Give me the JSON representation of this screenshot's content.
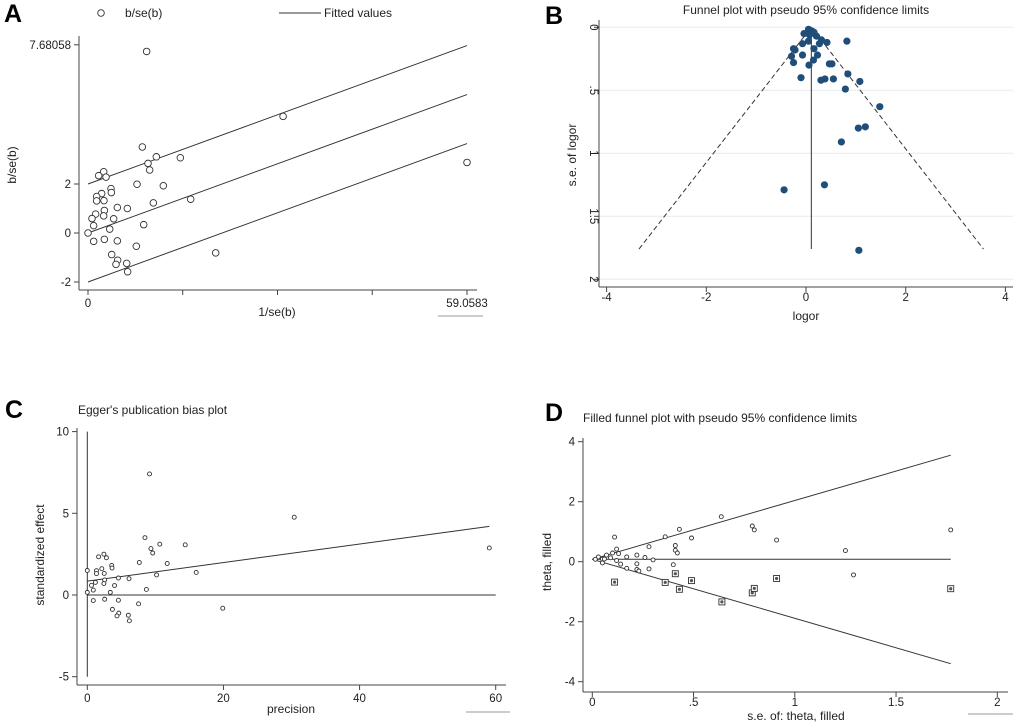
{
  "chart_data": [
    {
      "panel": "A",
      "type": "scatter",
      "title": "",
      "legend": {
        "position": "top",
        "entries": [
          {
            "label": "b/se(b)",
            "marker": "hollow-circle"
          },
          {
            "label": "Fitted values",
            "marker": "line"
          }
        ]
      },
      "xlabel": "1/se(b)",
      "ylabel": "b/se(b)",
      "xlim": [
        0,
        59.0583
      ],
      "ylim": [
        -2,
        7.68058
      ],
      "grid": false,
      "xticks": [
        {
          "v": 0,
          "label": "0"
        },
        {
          "v": 14.76,
          "label": ""
        },
        {
          "v": 29.53,
          "label": ""
        },
        {
          "v": 44.29,
          "label": ""
        },
        {
          "v": 59.0583,
          "label": "59.0583"
        }
      ],
      "yticks": [
        {
          "v": -2,
          "label": "-2"
        },
        {
          "v": 0,
          "label": "0"
        },
        {
          "v": 2,
          "label": "2"
        },
        {
          "v": 7.68058,
          "label": "7.68058"
        }
      ],
      "marker_color": "#333333",
      "points": [
        [
          9.14,
          7.41
        ],
        [
          30.4,
          4.76
        ],
        [
          59.06,
          2.88
        ],
        [
          8.47,
          3.51
        ],
        [
          10.65,
          3.11
        ],
        [
          14.39,
          3.07
        ],
        [
          9.35,
          2.84
        ],
        [
          9.61,
          2.57
        ],
        [
          2.44,
          2.5
        ],
        [
          1.66,
          2.34
        ],
        [
          2.81,
          2.28
        ],
        [
          7.64,
          1.99
        ],
        [
          11.74,
          1.93
        ],
        [
          3.58,
          1.81
        ],
        [
          2.13,
          1.61
        ],
        [
          3.64,
          1.65
        ],
        [
          1.35,
          1.49
        ],
        [
          1.35,
          1.31
        ],
        [
          2.49,
          1.32
        ],
        [
          16.0,
          1.38
        ],
        [
          10.18,
          1.23
        ],
        [
          4.57,
          1.04
        ],
        [
          6.13,
          1.0
        ],
        [
          2.55,
          0.92
        ],
        [
          1.19,
          0.77
        ],
        [
          2.44,
          0.7
        ],
        [
          0.62,
          0.59
        ],
        [
          4.0,
          0.58
        ],
        [
          0.88,
          0.3
        ],
        [
          8.68,
          0.34
        ],
        [
          3.38,
          0.16
        ],
        [
          0,
          0
        ],
        [
          0.88,
          -0.34
        ],
        [
          2.55,
          -0.26
        ],
        [
          4.57,
          -0.32
        ],
        [
          7.53,
          -0.54
        ],
        [
          3.69,
          -0.88
        ],
        [
          19.9,
          -0.81
        ],
        [
          4.62,
          -1.11
        ],
        [
          4.36,
          -1.28
        ],
        [
          6.03,
          -1.24
        ],
        [
          6.18,
          -1.58
        ]
      ],
      "lines": [
        {
          "style": "solid",
          "points": [
            [
              0,
              0
            ],
            [
              59.0583,
              5.65
            ]
          ]
        },
        {
          "style": "solid",
          "points": [
            [
              0,
              2
            ],
            [
              59.0583,
              7.65
            ]
          ]
        },
        {
          "style": "solid",
          "points": [
            [
              0,
              -2
            ],
            [
              59.0583,
              3.65
            ]
          ]
        }
      ]
    },
    {
      "panel": "B",
      "type": "scatter",
      "title": "Funnel plot with pseudo 95% confidence limits",
      "xlabel": "logor",
      "ylabel": "s.e. of logor",
      "xlim": [
        -4,
        4
      ],
      "ylim": [
        2,
        0
      ],
      "y_reversed": true,
      "grid": true,
      "xticks": [
        {
          "v": -4,
          "label": "-4"
        },
        {
          "v": -2,
          "label": "-2"
        },
        {
          "v": 0,
          "label": "0"
        },
        {
          "v": 2,
          "label": "2"
        },
        {
          "v": 4,
          "label": "4"
        }
      ],
      "yticks": [
        {
          "v": 0,
          "label": "0"
        },
        {
          "v": 0.5,
          "label": ".5"
        },
        {
          "v": 1,
          "label": "1"
        },
        {
          "v": 1.5,
          "label": "1.5"
        },
        {
          "v": 2,
          "label": "2"
        }
      ],
      "marker_color": "#1f4e79",
      "points": [
        [
          0.05,
          0.016
        ],
        [
          0.12,
          0.03
        ],
        [
          0.16,
          0.04
        ],
        [
          -0.04,
          0.05
        ],
        [
          0.07,
          0.06
        ],
        [
          0.21,
          0.07
        ],
        [
          0.31,
          0.1
        ],
        [
          0.82,
          0.11
        ],
        [
          0.42,
          0.12
        ],
        [
          0.05,
          0.11
        ],
        [
          -0.07,
          0.13
        ],
        [
          0.27,
          0.13
        ],
        [
          -0.25,
          0.17
        ],
        [
          0.16,
          0.17
        ],
        [
          -0.22,
          0.18
        ],
        [
          -0.07,
          0.22
        ],
        [
          0.23,
          0.22
        ],
        [
          -0.29,
          0.23
        ],
        [
          -0.25,
          0.28
        ],
        [
          0.15,
          0.26
        ],
        [
          0.47,
          0.29
        ],
        [
          0.52,
          0.29
        ],
        [
          0.06,
          0.3
        ],
        [
          0.84,
          0.37
        ],
        [
          -0.1,
          0.4
        ],
        [
          0.38,
          0.41
        ],
        [
          0.3,
          0.42
        ],
        [
          0.55,
          0.41
        ],
        [
          1.08,
          0.43
        ],
        [
          0.79,
          0.49
        ],
        [
          1.48,
          0.63
        ],
        [
          1.19,
          0.79
        ],
        [
          1.05,
          0.8
        ],
        [
          0.71,
          0.91
        ],
        [
          0.37,
          1.25
        ],
        [
          -0.44,
          1.29
        ],
        [
          1.06,
          1.77
        ]
      ],
      "lines": [
        {
          "style": "solid",
          "points": [
            [
              0.107,
              0
            ],
            [
              0.107,
              1.76
            ]
          ]
        },
        {
          "style": "dashed",
          "points": [
            [
              -3.35,
              1.76
            ],
            [
              0.107,
              0
            ],
            [
              3.56,
              1.76
            ]
          ]
        }
      ]
    },
    {
      "panel": "C",
      "type": "scatter",
      "title": "Egger's publication bias plot",
      "xlabel": "precision",
      "ylabel": "standardized effect",
      "xlim": [
        0,
        60
      ],
      "ylim": [
        -5,
        10
      ],
      "grid": false,
      "xticks": [
        {
          "v": 0,
          "label": "0"
        },
        {
          "v": 20,
          "label": "20"
        },
        {
          "v": 40,
          "label": "40"
        },
        {
          "v": 60,
          "label": "60"
        }
      ],
      "yticks": [
        {
          "v": -5,
          "label": "-5"
        },
        {
          "v": 0,
          "label": "0"
        },
        {
          "v": 5,
          "label": "5"
        },
        {
          "v": 10,
          "label": "10"
        }
      ],
      "marker_color": "#333333",
      "points": [
        [
          9.14,
          7.41
        ],
        [
          30.4,
          4.76
        ],
        [
          59.06,
          2.88
        ],
        [
          8.47,
          3.51
        ],
        [
          10.65,
          3.11
        ],
        [
          14.39,
          3.07
        ],
        [
          9.35,
          2.84
        ],
        [
          9.61,
          2.57
        ],
        [
          2.44,
          2.5
        ],
        [
          1.66,
          2.34
        ],
        [
          2.81,
          2.28
        ],
        [
          7.64,
          1.99
        ],
        [
          11.74,
          1.93
        ],
        [
          3.58,
          1.81
        ],
        [
          2.13,
          1.61
        ],
        [
          3.64,
          1.65
        ],
        [
          1.35,
          1.49
        ],
        [
          1.35,
          1.31
        ],
        [
          2.49,
          1.32
        ],
        [
          16.0,
          1.38
        ],
        [
          10.18,
          1.23
        ],
        [
          4.57,
          1.04
        ],
        [
          6.13,
          1.0
        ],
        [
          2.55,
          0.92
        ],
        [
          1.19,
          0.77
        ],
        [
          2.44,
          0.7
        ],
        [
          0.62,
          0.59
        ],
        [
          4.0,
          0.58
        ],
        [
          0.88,
          0.3
        ],
        [
          8.68,
          0.34
        ],
        [
          3.38,
          0.16
        ],
        [
          0,
          0.16
        ],
        [
          0,
          1.5
        ],
        [
          0.88,
          -0.34
        ],
        [
          2.55,
          -0.26
        ],
        [
          4.57,
          -0.32
        ],
        [
          7.53,
          -0.54
        ],
        [
          3.69,
          -0.88
        ],
        [
          19.9,
          -0.81
        ],
        [
          4.62,
          -1.11
        ],
        [
          4.36,
          -1.28
        ],
        [
          6.03,
          -1.24
        ],
        [
          6.18,
          -1.58
        ]
      ],
      "lines": [
        {
          "style": "solid",
          "points": [
            [
              0,
              0.85
            ],
            [
              59.06,
              4.2
            ]
          ]
        },
        {
          "style": "solid",
          "points": [
            [
              0,
              0
            ],
            [
              60,
              0
            ]
          ]
        },
        {
          "style": "solid",
          "points": [
            [
              0,
              -5
            ],
            [
              0,
              10
            ]
          ]
        }
      ]
    },
    {
      "panel": "D",
      "type": "scatter",
      "title": "Filled funnel plot with pseudo 95% confidence limits",
      "xlabel": "s.e. of: theta, filled",
      "ylabel": "theta, filled",
      "xlim": [
        0,
        2
      ],
      "ylim": [
        -4,
        4
      ],
      "grid": false,
      "xticks": [
        {
          "v": 0,
          "label": "0"
        },
        {
          "v": 0.5,
          "label": ".5"
        },
        {
          "v": 1,
          "label": "1"
        },
        {
          "v": 1.5,
          "label": "1.5"
        },
        {
          "v": 2,
          "label": "2"
        }
      ],
      "yticks": [
        {
          "v": -4,
          "label": "-4"
        },
        {
          "v": -2,
          "label": "-2"
        },
        {
          "v": 0,
          "label": "0"
        },
        {
          "v": 2,
          "label": "2"
        },
        {
          "v": 4,
          "label": "4"
        }
      ],
      "marker_color": "#333333",
      "points": [
        [
          0.637,
          1.5
        ],
        [
          0.79,
          1.19
        ],
        [
          0.8,
          1.06
        ],
        [
          0.43,
          1.08
        ],
        [
          1.77,
          1.06
        ],
        [
          0.49,
          0.79
        ],
        [
          0.36,
          0.83
        ],
        [
          0.91,
          0.72
        ],
        [
          0.11,
          0.82
        ],
        [
          0.41,
          0.54
        ],
        [
          1.25,
          0.37
        ],
        [
          0.41,
          0.38
        ],
        [
          0.42,
          0.29
        ],
        [
          0.28,
          0.5
        ],
        [
          0.12,
          0.42
        ],
        [
          0.13,
          0.27
        ],
        [
          0.1,
          0.29
        ],
        [
          0.22,
          0.22
        ],
        [
          0.26,
          0.14
        ],
        [
          0.3,
          0.06
        ],
        [
          0.17,
          0.16
        ],
        [
          0.07,
          0.22
        ],
        [
          0.09,
          0.13
        ],
        [
          0.03,
          0.16
        ],
        [
          0.015,
          0.08
        ],
        [
          0.05,
          0.09
        ],
        [
          0.06,
          0.09
        ],
        [
          0.12,
          0.04
        ],
        [
          0.05,
          -0.04
        ],
        [
          0.14,
          -0.08
        ],
        [
          0.22,
          -0.07
        ],
        [
          0.4,
          -0.1
        ],
        [
          0.17,
          -0.22
        ],
        [
          0.22,
          -0.26
        ],
        [
          0.23,
          -0.31
        ],
        [
          0.28,
          -0.24
        ],
        [
          1.29,
          -0.44
        ]
      ],
      "filled_points": [
        [
          0.11,
          -0.68
        ],
        [
          0.36,
          -0.69
        ],
        [
          0.41,
          -0.4
        ],
        [
          0.43,
          -0.92
        ],
        [
          0.49,
          -0.63
        ],
        [
          0.64,
          -1.34
        ],
        [
          0.79,
          -1.04
        ],
        [
          0.8,
          -0.89
        ],
        [
          0.91,
          -0.56
        ],
        [
          1.77,
          -0.9
        ]
      ],
      "lines": [
        {
          "style": "solid",
          "points": [
            [
              0,
              0.08
            ],
            [
              1.77,
              0.08
            ]
          ]
        },
        {
          "style": "solid",
          "points": [
            [
              0,
              0.08
            ],
            [
              1.77,
              3.55
            ]
          ]
        },
        {
          "style": "solid",
          "points": [
            [
              0,
              0.08
            ],
            [
              1.77,
              -3.4
            ]
          ]
        }
      ]
    }
  ]
}
